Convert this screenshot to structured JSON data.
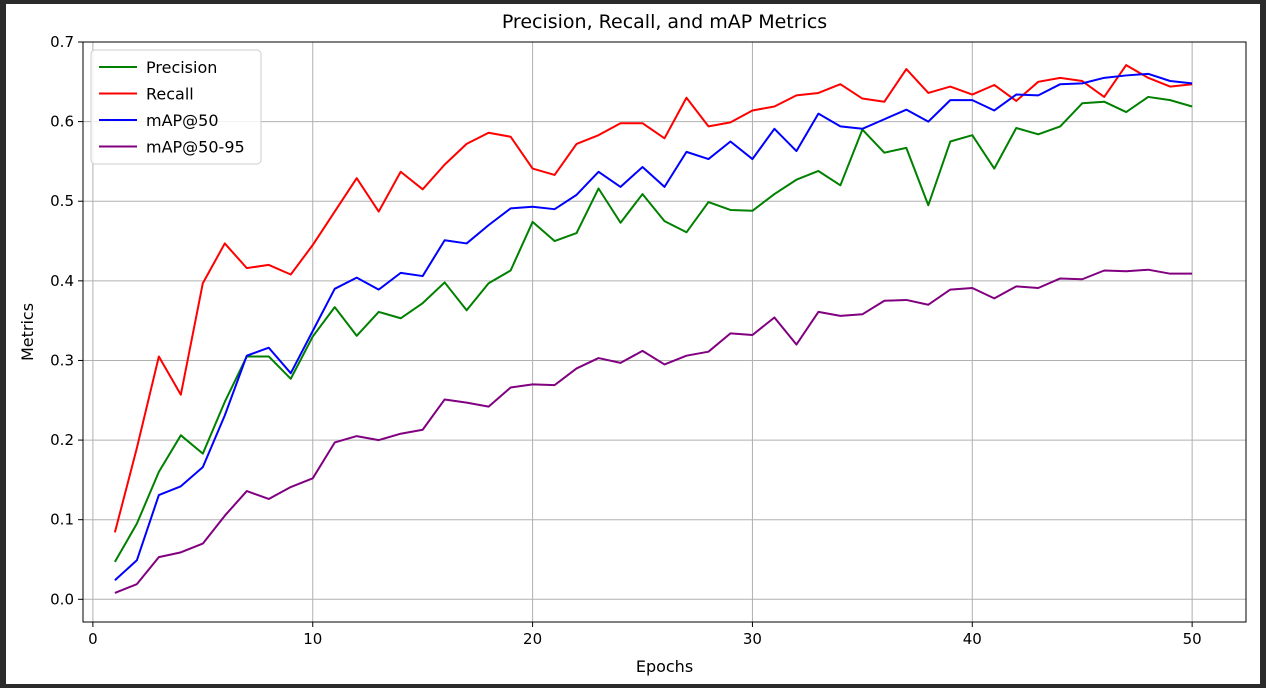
{
  "chart_data": {
    "type": "line",
    "title": "Precision, Recall, and mAP Metrics",
    "xlabel": "Epochs",
    "ylabel": "Metrics",
    "xlim": [
      -0.45,
      52.45
    ],
    "ylim": [
      -0.0285,
      0.7
    ],
    "xticks": [
      0,
      10,
      20,
      30,
      40,
      50
    ],
    "yticks": [
      0.0,
      0.1,
      0.2,
      0.3,
      0.4,
      0.5,
      0.6,
      0.7
    ],
    "grid": true,
    "legend_position": "top-left",
    "x": [
      1,
      2,
      3,
      4,
      5,
      6,
      7,
      8,
      9,
      10,
      11,
      12,
      13,
      14,
      15,
      16,
      17,
      18,
      19,
      20,
      21,
      22,
      23,
      24,
      25,
      26,
      27,
      28,
      29,
      30,
      31,
      32,
      33,
      34,
      35,
      36,
      37,
      38,
      39,
      40,
      41,
      42,
      43,
      44,
      45,
      46,
      47,
      48,
      49,
      50
    ],
    "series": [
      {
        "name": "Precision",
        "color": "#008000",
        "values": [
          0.047,
          0.095,
          0.16,
          0.206,
          0.183,
          0.248,
          0.305,
          0.305,
          0.277,
          0.33,
          0.367,
          0.331,
          0.361,
          0.353,
          0.372,
          0.398,
          0.363,
          0.397,
          0.413,
          0.474,
          0.45,
          0.46,
          0.516,
          0.473,
          0.509,
          0.475,
          0.461,
          0.499,
          0.489,
          0.488,
          0.509,
          0.527,
          0.538,
          0.52,
          0.59,
          0.561,
          0.567,
          0.495,
          0.575,
          0.583,
          0.541,
          0.592,
          0.584,
          0.594,
          0.623,
          0.625,
          0.612,
          0.631,
          0.627,
          0.619
        ]
      },
      {
        "name": "Recall",
        "color": "#ff0000",
        "values": [
          0.084,
          0.19,
          0.305,
          0.257,
          0.397,
          0.447,
          0.416,
          0.42,
          0.408,
          0.445,
          0.487,
          0.529,
          0.487,
          0.537,
          0.515,
          0.546,
          0.572,
          0.586,
          0.581,
          0.541,
          0.533,
          0.572,
          0.583,
          0.598,
          0.598,
          0.579,
          0.63,
          0.594,
          0.599,
          0.614,
          0.619,
          0.633,
          0.636,
          0.647,
          0.629,
          0.625,
          0.666,
          0.636,
          0.644,
          0.634,
          0.646,
          0.626,
          0.65,
          0.655,
          0.651,
          0.631,
          0.671,
          0.655,
          0.644,
          0.647
        ]
      },
      {
        "name": "mAP@50",
        "color": "#0000ff",
        "values": [
          0.024,
          0.049,
          0.131,
          0.142,
          0.166,
          0.231,
          0.306,
          0.316,
          0.284,
          0.337,
          0.39,
          0.404,
          0.389,
          0.41,
          0.406,
          0.451,
          0.447,
          0.47,
          0.491,
          0.493,
          0.49,
          0.508,
          0.537,
          0.518,
          0.543,
          0.518,
          0.562,
          0.553,
          0.575,
          0.553,
          0.591,
          0.563,
          0.61,
          0.594,
          0.591,
          0.603,
          0.615,
          0.6,
          0.627,
          0.627,
          0.614,
          0.634,
          0.633,
          0.647,
          0.648,
          0.655,
          0.658,
          0.66,
          0.651,
          0.648
        ]
      },
      {
        "name": "mAP@50-95",
        "color": "#800080",
        "values": [
          0.008,
          0.019,
          0.053,
          0.059,
          0.07,
          0.105,
          0.136,
          0.126,
          0.141,
          0.152,
          0.197,
          0.205,
          0.2,
          0.208,
          0.213,
          0.251,
          0.247,
          0.242,
          0.266,
          0.27,
          0.269,
          0.29,
          0.303,
          0.297,
          0.312,
          0.295,
          0.306,
          0.311,
          0.334,
          0.332,
          0.354,
          0.32,
          0.361,
          0.356,
          0.358,
          0.375,
          0.376,
          0.37,
          0.389,
          0.391,
          0.378,
          0.393,
          0.391,
          0.403,
          0.402,
          0.413,
          0.412,
          0.414,
          0.409,
          0.409
        ]
      }
    ]
  }
}
